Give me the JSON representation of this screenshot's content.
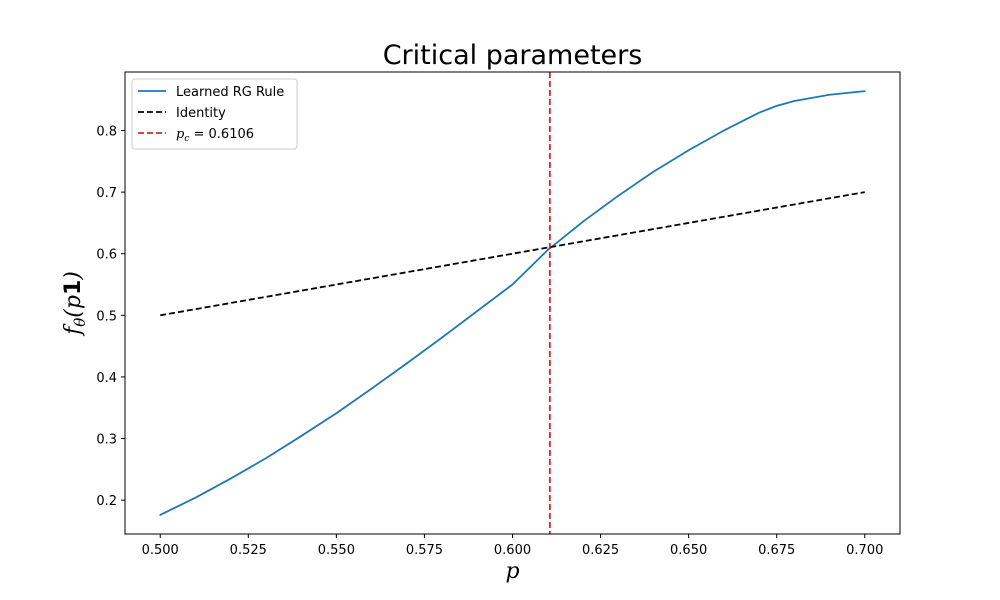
{
  "chart_data": {
    "type": "line",
    "title": "Critical parameters",
    "xlabel": "p",
    "ylabel": "fθ(p1)",
    "xlim": [
      0.49,
      0.71
    ],
    "ylim": [
      0.145,
      0.895
    ],
    "xticks": [
      "0.500",
      "0.525",
      "0.550",
      "0.575",
      "0.600",
      "0.625",
      "0.650",
      "0.675",
      "0.700"
    ],
    "xtick_values": [
      0.5,
      0.525,
      0.55,
      0.575,
      0.6,
      0.625,
      0.65,
      0.675,
      0.7
    ],
    "yticks": [
      "0.2",
      "0.3",
      "0.4",
      "0.5",
      "0.6",
      "0.7",
      "0.8"
    ],
    "ytick_values": [
      0.2,
      0.3,
      0.4,
      0.5,
      0.6,
      0.7,
      0.8
    ],
    "grid": false,
    "legend_position": "top-left",
    "series": [
      {
        "name": "Learned RG Rule",
        "color": "#1f77b4",
        "style": "solid",
        "x": [
          0.5,
          0.51,
          0.52,
          0.53,
          0.54,
          0.55,
          0.56,
          0.57,
          0.58,
          0.59,
          0.6,
          0.61,
          0.62,
          0.63,
          0.64,
          0.65,
          0.66,
          0.67,
          0.675,
          0.68,
          0.69,
          0.7
        ],
        "y": [
          0.176,
          0.204,
          0.235,
          0.268,
          0.304,
          0.341,
          0.381,
          0.422,
          0.464,
          0.507,
          0.55,
          0.606,
          0.652,
          0.694,
          0.733,
          0.768,
          0.8,
          0.829,
          0.84,
          0.848,
          0.858,
          0.864
        ]
      },
      {
        "name": "Identity",
        "color": "#000000",
        "style": "dashed",
        "x": [
          0.5,
          0.7
        ],
        "y": [
          0.5,
          0.7
        ]
      }
    ],
    "vlines": [
      {
        "name": "pc = 0.6106",
        "label_main": "p",
        "label_sub": "c",
        "label_rest": " = 0.6106",
        "x": 0.6106,
        "color": "#d62728",
        "style": "dashed"
      }
    ]
  }
}
